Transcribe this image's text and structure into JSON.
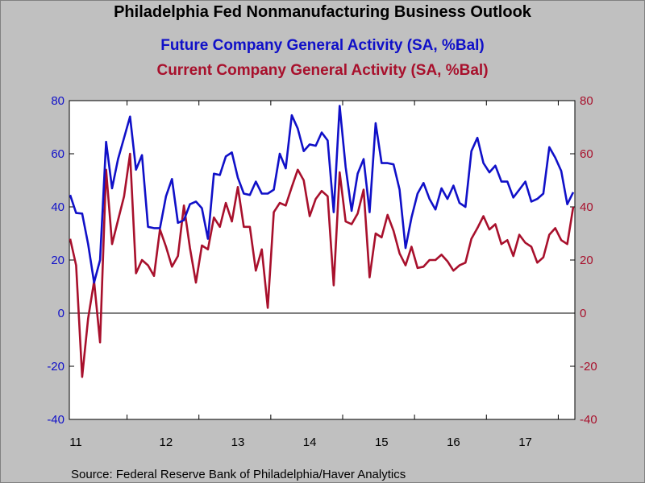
{
  "chart_data": {
    "type": "line",
    "title": "Philadelphia Fed Nonmanufacturing Business Outlook",
    "source": "Source:  Federal Reserve Bank of Philadelphia/Haver Analytics",
    "ylim_left": [
      -40,
      80
    ],
    "ylim_right": [
      -40,
      80
    ],
    "yticks": [
      "80",
      "60",
      "40",
      "20",
      "0",
      "-20",
      "-40"
    ],
    "x_labels": [
      "11",
      "12",
      "13",
      "14",
      "15",
      "16",
      "17"
    ],
    "x_start": "2011-03",
    "x_end": "2018-03",
    "zero_line": true,
    "series": [
      {
        "name": "Future Company General Activity (SA, %Bal)",
        "color": "#1010c8",
        "axis": "left",
        "values": [
          44.5,
          37.7,
          37.5,
          26.0,
          11.5,
          20.0,
          64.5,
          47.0,
          58.0,
          66.0,
          74.0,
          54.0,
          59.5,
          32.5,
          32.0,
          32.0,
          44.0,
          50.5,
          34.0,
          35.0,
          41.0,
          42.0,
          39.5,
          28.0,
          52.5,
          52.0,
          59.0,
          60.5,
          51.0,
          45.0,
          44.5,
          49.5,
          45.0,
          45.0,
          46.5,
          60.0,
          54.5,
          74.5,
          69.5,
          61.0,
          63.5,
          63.0,
          68.0,
          65.0,
          38.0,
          78.0,
          55.0,
          38.5,
          52.5,
          58.0,
          38.0,
          71.5,
          56.5,
          56.5,
          56.0,
          46.5,
          24.5,
          36.0,
          45.0,
          49.0,
          43.0,
          39.0,
          47.0,
          43.0,
          48.0,
          41.5,
          40.0,
          61.0,
          66.0,
          56.5,
          53.0,
          55.5,
          49.5,
          49.5,
          43.5,
          46.5,
          49.5,
          42.0,
          43.0,
          45.0,
          62.5,
          58.5,
          53.5,
          41.0,
          45.5
        ]
      },
      {
        "name": "Current Company General Activity (SA, %Bal)",
        "color": "#a8102c",
        "axis": "right",
        "values": [
          28.0,
          18.0,
          -24.0,
          -2.0,
          12.0,
          -11.0,
          54.0,
          26.0,
          35.0,
          44.0,
          60.0,
          15.0,
          20.0,
          18.0,
          14.0,
          31.5,
          25.0,
          17.5,
          21.5,
          40.5,
          24.5,
          11.5,
          25.5,
          24.0,
          36.0,
          32.5,
          41.5,
          34.5,
          47.5,
          32.5,
          32.5,
          16.0,
          24.0,
          2.0,
          38.0,
          41.5,
          40.5,
          47.5,
          54.0,
          50.0,
          36.5,
          43.0,
          46.0,
          44.0,
          10.5,
          53.0,
          34.5,
          33.5,
          37.5,
          46.5,
          13.5,
          30.0,
          28.5,
          37.0,
          31.0,
          22.5,
          18.0,
          25.0,
          17.0,
          17.5,
          20.0,
          20.0,
          22.0,
          19.5,
          16.0,
          18.0,
          19.0,
          28.0,
          32.0,
          36.5,
          31.5,
          33.5,
          26.0,
          27.5,
          21.5,
          29.5,
          26.5,
          25.0,
          19.0,
          21.0,
          29.5,
          32.0,
          27.5,
          26.0,
          40.0
        ]
      }
    ]
  }
}
